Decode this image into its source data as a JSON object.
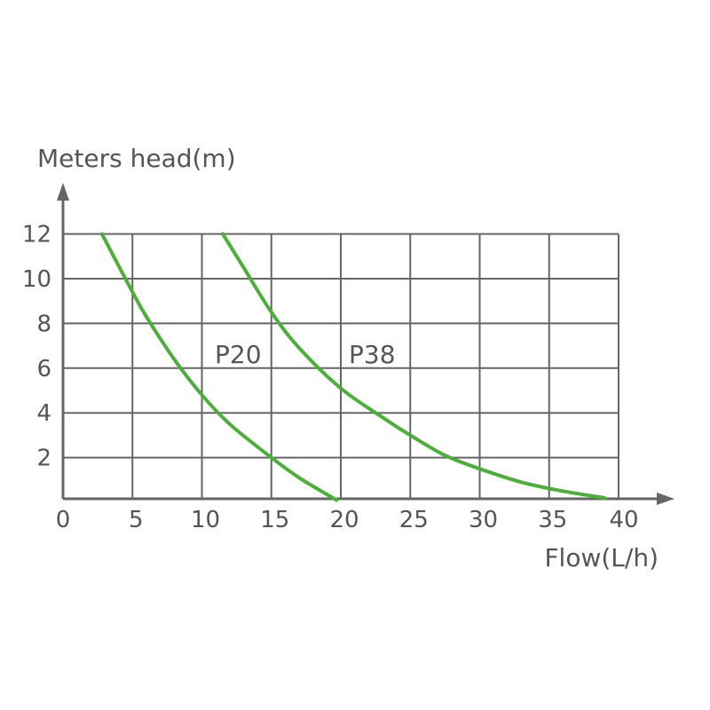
{
  "chart_data": {
    "type": "line",
    "title": "",
    "xlabel": "Flow(L/h)",
    "ylabel": "Meters head(m)",
    "xlim": [
      0,
      40
    ],
    "ylim": [
      0,
      12
    ],
    "x_ticks": [
      "0",
      "5",
      "10",
      "15",
      "20",
      "25",
      "30",
      "35",
      "40"
    ],
    "y_ticks": [
      "2",
      "4",
      "6",
      "8",
      "10",
      "12"
    ],
    "grid": true,
    "series": [
      {
        "name": "P20",
        "points": [
          [
            2.8,
            12
          ],
          [
            5,
            9.4
          ],
          [
            6,
            8.3
          ],
          [
            8,
            6.4
          ],
          [
            10,
            4.8
          ],
          [
            12,
            3.5
          ],
          [
            15,
            2
          ],
          [
            17,
            1.1
          ],
          [
            19.7,
            0.1
          ]
        ]
      },
      {
        "name": "P38",
        "points": [
          [
            11.5,
            12
          ],
          [
            13,
            10.5
          ],
          [
            15,
            8.5
          ],
          [
            17,
            6.9
          ],
          [
            20,
            5.1
          ],
          [
            23,
            3.8
          ],
          [
            25,
            3
          ],
          [
            27.5,
            2.1
          ],
          [
            30,
            1.5
          ],
          [
            33,
            0.9
          ],
          [
            36,
            0.5
          ],
          [
            39,
            0.2
          ]
        ]
      }
    ],
    "colors": {
      "curve": "#4caf3a",
      "grid": "#666666",
      "axis": "#666666",
      "text": "#555555"
    }
  }
}
